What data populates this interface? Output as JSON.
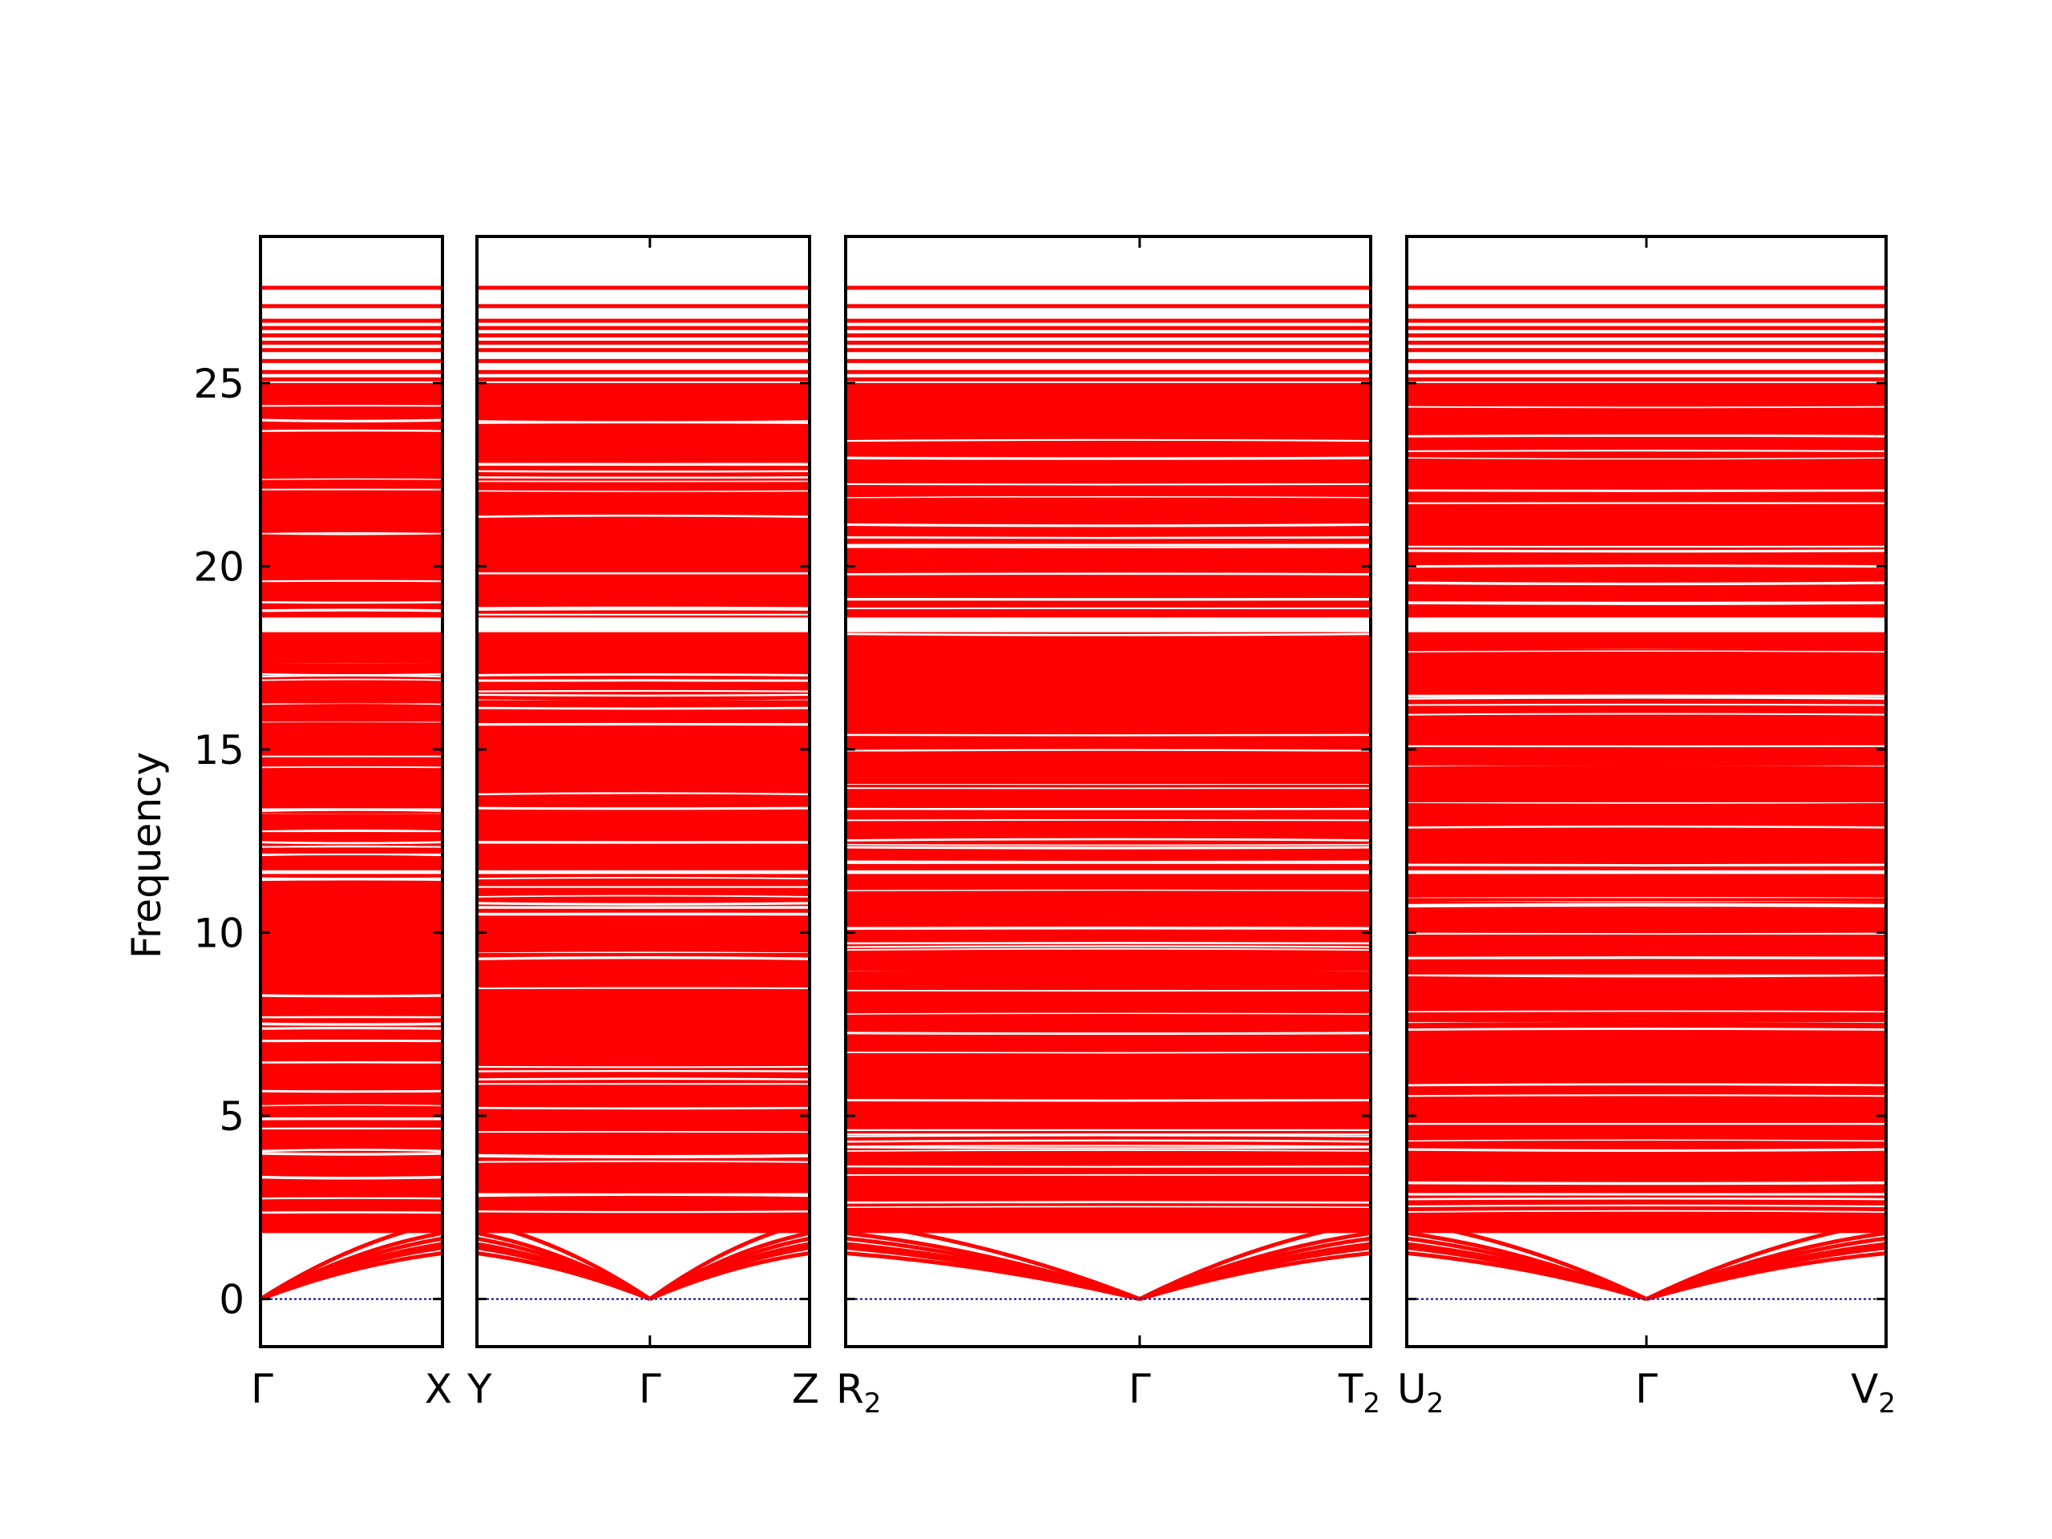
{
  "chart_data": {
    "type": "line",
    "title": "",
    "xlabel": "",
    "ylabel": "Frequency",
    "ylim": [
      -1.3,
      29
    ],
    "yticks": [
      0,
      5,
      10,
      15,
      20,
      25
    ],
    "grid": false,
    "legend": "none",
    "colors": {
      "bands": "#ff0000",
      "zero_line": "#00008b",
      "frame": "#000000"
    },
    "panels": [
      {
        "labels": [
          {
            "base": "Γ",
            "sub": ""
          },
          {
            "base": "X",
            "sub": ""
          }
        ]
      },
      {
        "labels": [
          {
            "base": "Y",
            "sub": ""
          },
          {
            "base": "Γ",
            "sub": ""
          },
          {
            "base": "Z",
            "sub": ""
          }
        ]
      },
      {
        "labels": [
          {
            "base": "R",
            "sub": "2"
          },
          {
            "base": "Γ",
            "sub": ""
          },
          {
            "base": "T",
            "sub": "2"
          }
        ]
      },
      {
        "labels": [
          {
            "base": "U",
            "sub": "2"
          },
          {
            "base": "Γ",
            "sub": ""
          },
          {
            "base": "V",
            "sub": "2"
          }
        ]
      }
    ],
    "bands": {
      "flat_upper_levels": [
        27.6,
        27.1,
        26.7,
        26.5,
        26.3,
        26.1,
        25.9,
        25.6,
        25.3,
        25.1
      ],
      "dense_block_1": [
        25.0,
        18.6
      ],
      "dense_block_2": [
        18.2,
        11.7
      ],
      "dense_block_3": [
        11.6,
        1.8
      ],
      "gap_lines": [
        20.2,
        19.7,
        17.8,
        17.3,
        16.8,
        16.3,
        15.8,
        15.6,
        14.9,
        14.6,
        14.1,
        13.6,
        13.2,
        12.7,
        12.2,
        10.9,
        10.4,
        9.9,
        9.4,
        8.9,
        8.1,
        7.6
      ],
      "acoustic_edge_values": [
        1.25,
        1.4,
        1.5,
        1.65,
        1.8,
        2.1
      ]
    }
  }
}
